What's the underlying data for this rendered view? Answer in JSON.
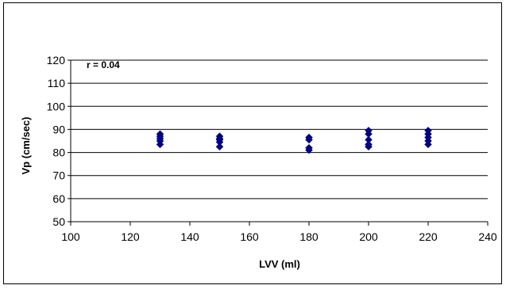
{
  "chart_data": {
    "type": "scatter",
    "title": "",
    "xlabel": "LVV  (ml)",
    "ylabel": "Vp (cm/sec)",
    "xlim": [
      100,
      240
    ],
    "ylim": [
      50,
      120
    ],
    "x_ticks": [
      100,
      120,
      140,
      160,
      180,
      200,
      220,
      240
    ],
    "y_ticks": [
      50,
      60,
      70,
      80,
      90,
      100,
      110,
      120
    ],
    "grid": "horizontal",
    "legend": "none",
    "annotation": "r = 0.04",
    "marker": "diamond",
    "marker_color": "#000080",
    "series": [
      {
        "points": [
          {
            "x": 130,
            "y": 83.5
          },
          {
            "x": 130,
            "y": 85
          },
          {
            "x": 130,
            "y": 86
          },
          {
            "x": 130,
            "y": 87
          },
          {
            "x": 130,
            "y": 88
          },
          {
            "x": 150,
            "y": 82.5
          },
          {
            "x": 150,
            "y": 84.5
          },
          {
            "x": 150,
            "y": 85.5
          },
          {
            "x": 150,
            "y": 86
          },
          {
            "x": 150,
            "y": 87
          },
          {
            "x": 180,
            "y": 81
          },
          {
            "x": 180,
            "y": 82
          },
          {
            "x": 180,
            "y": 85.5
          },
          {
            "x": 180,
            "y": 86.5
          },
          {
            "x": 200,
            "y": 82.5
          },
          {
            "x": 200,
            "y": 83.5
          },
          {
            "x": 200,
            "y": 85.5
          },
          {
            "x": 200,
            "y": 88
          },
          {
            "x": 200,
            "y": 89.5
          },
          {
            "x": 220,
            "y": 83.5
          },
          {
            "x": 220,
            "y": 85
          },
          {
            "x": 220,
            "y": 86.5
          },
          {
            "x": 220,
            "y": 88
          },
          {
            "x": 220,
            "y": 89.5
          }
        ]
      }
    ]
  }
}
